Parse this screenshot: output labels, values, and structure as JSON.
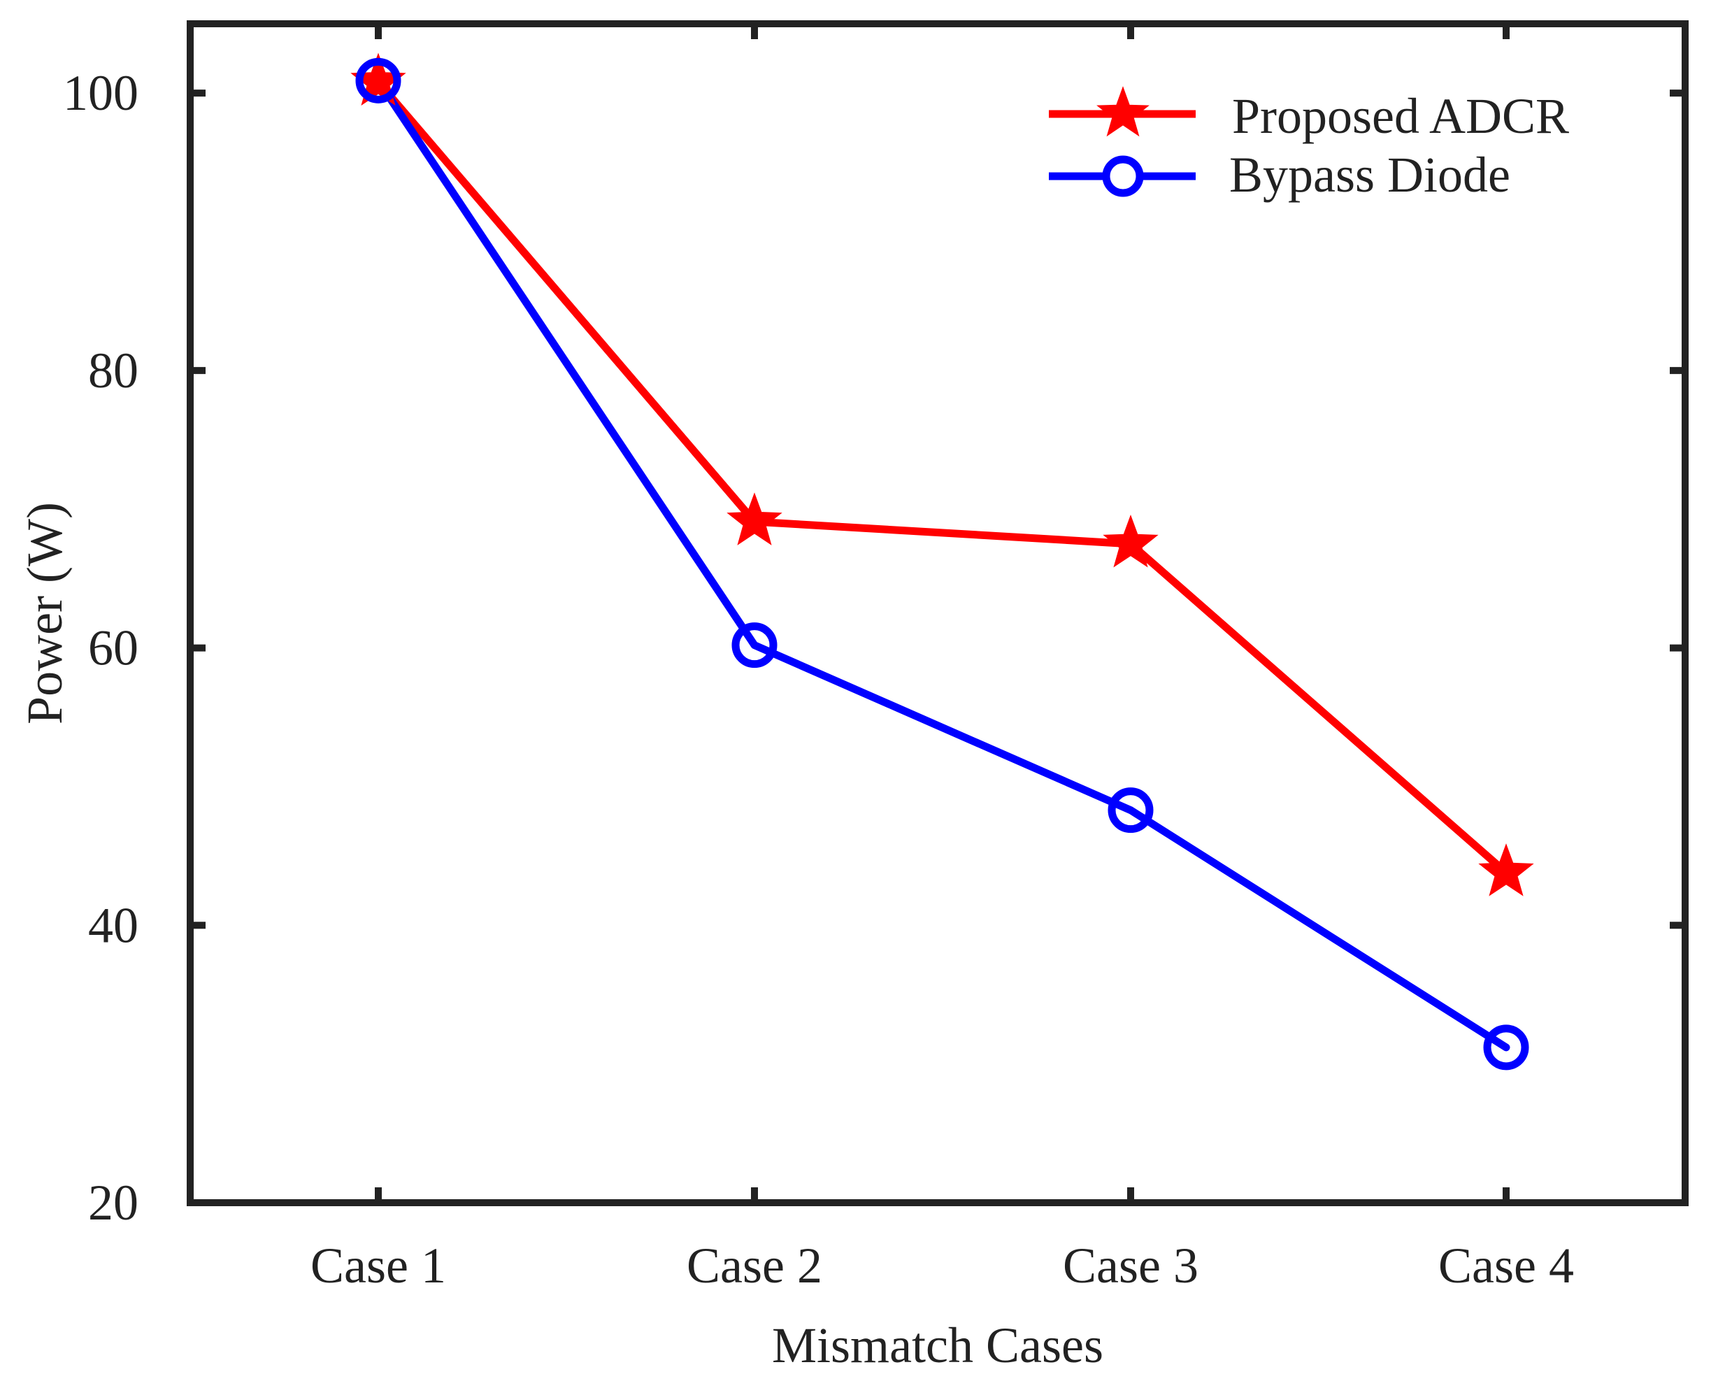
{
  "chart_data": {
    "type": "line",
    "title": "",
    "xlabel": "Mismatch Cases",
    "ylabel": "Power (W)",
    "categories": [
      "Case 1",
      "Case 2",
      "Case 3",
      "Case 4"
    ],
    "ylim": [
      20,
      105
    ],
    "yticks": [
      20,
      40,
      60,
      80,
      100
    ],
    "grid": false,
    "legend_position": "top-right",
    "series": [
      {
        "name": "Proposed ADCR",
        "color": "#ff0000",
        "marker": "star",
        "values": [
          100.8,
          69.1,
          67.5,
          43.8
        ]
      },
      {
        "name": "Bypass Diode",
        "color": "#0000ff",
        "marker": "circle",
        "values": [
          100.9,
          60.2,
          48.3,
          31.2
        ]
      }
    ]
  }
}
